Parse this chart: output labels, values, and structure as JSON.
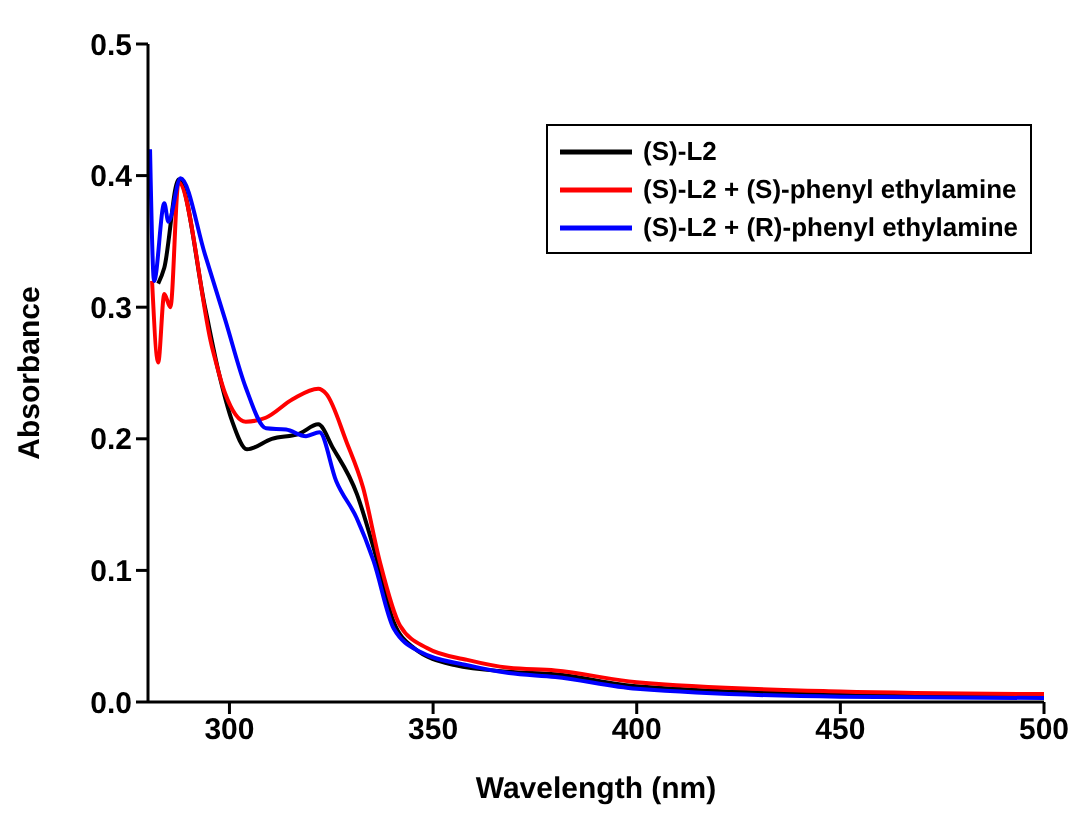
{
  "chart_data": {
    "type": "line",
    "xlabel": "Wavelength (nm)",
    "ylabel": "Absorbance",
    "xlim": [
      280,
      500
    ],
    "xticks": [
      300,
      350,
      400,
      450,
      500
    ],
    "ylim": [
      0,
      0.5
    ],
    "yticks": [
      {
        "value": 0,
        "label": "0.0"
      },
      {
        "value": 0.1,
        "label": "0.1"
      },
      {
        "value": 0.2,
        "label": "0.2"
      },
      {
        "value": 0.3,
        "label": "0.3"
      },
      {
        "value": 0.4,
        "label": "0.4"
      },
      {
        "value": 0.5,
        "label": "0.5"
      }
    ],
    "grid": false,
    "legend": "top right",
    "marker": "none",
    "line_style": "solid",
    "series": [
      {
        "name": "(S)-L2",
        "color": "#000000",
        "x": [
          282.5,
          284,
          287.5,
          294,
          297.4,
          300.7,
          304.3,
          310.4,
          317.2,
          321.8,
          325.4,
          331.3,
          335.4,
          340.3,
          345.3,
          355.3,
          368.6,
          380,
          400,
          450,
          500
        ],
        "values": [
          0.318,
          0.33,
          0.397,
          0.3,
          0.25,
          0.213,
          0.192,
          0.2,
          0.204,
          0.211,
          0.193,
          0.158,
          0.117,
          0.061,
          0.041,
          0.028,
          0.023,
          0.021,
          0.012,
          0.006,
          0.005
        ]
      },
      {
        "name": "(S)-L2 + (S)-phenyl ethylamine",
        "color": "#ff0000",
        "x": [
          281,
          282.5,
          284,
          285.5,
          287.5,
          295.7,
          299,
          304,
          308.9,
          315.5,
          321.8,
          323.8,
          328.7,
          332.8,
          336.9,
          341.9,
          348.5,
          358.4,
          368.6,
          380,
          400,
          450,
          500
        ],
        "values": [
          0.32,
          0.258,
          0.31,
          0.3,
          0.395,
          0.27,
          0.234,
          0.213,
          0.216,
          0.23,
          0.238,
          0.234,
          0.198,
          0.163,
          0.107,
          0.058,
          0.041,
          0.032,
          0.026,
          0.024,
          0.015,
          0.008,
          0.006
        ]
      },
      {
        "name": "(S)-L2 + (R)-phenyl ethylamine",
        "color": "#0000ff",
        "x": [
          280.5,
          281.5,
          284,
          285,
          288,
          294,
          299,
          304,
          309,
          313.9,
          318.8,
          322.1,
          326.2,
          331.2,
          335.4,
          340.3,
          346.9,
          358.4,
          368.6,
          380,
          400,
          450,
          500
        ],
        "values": [
          0.42,
          0.32,
          0.379,
          0.365,
          0.398,
          0.34,
          0.29,
          0.239,
          0.208,
          0.207,
          0.202,
          0.205,
          0.168,
          0.14,
          0.107,
          0.056,
          0.038,
          0.028,
          0.022,
          0.019,
          0.01,
          0.004,
          0.003
        ]
      }
    ]
  }
}
